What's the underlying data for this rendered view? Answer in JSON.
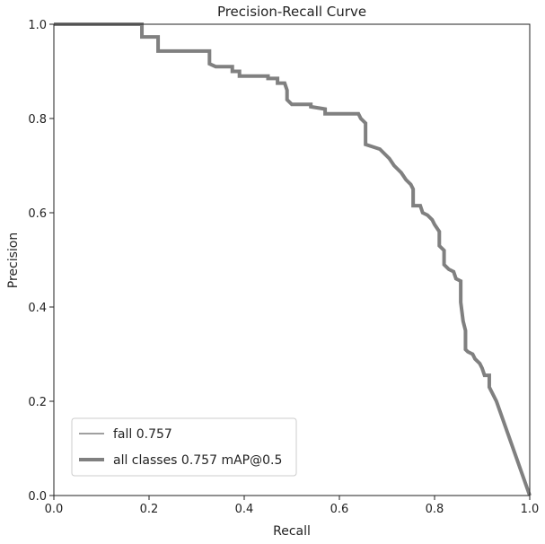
{
  "chart_data": {
    "type": "line",
    "title": "Precision-Recall Curve",
    "xlabel": "Recall",
    "ylabel": "Precision",
    "xlim": [
      0,
      1
    ],
    "ylim": [
      0,
      1
    ],
    "xticks": [
      "0.0",
      "0.2",
      "0.4",
      "0.6",
      "0.8",
      "1.0"
    ],
    "yticks": [
      "0.0",
      "0.2",
      "0.4",
      "0.6",
      "0.8",
      "1.0"
    ],
    "grid": false,
    "legend_position": "bottom-left",
    "series": [
      {
        "name": "fall 0.757",
        "color": "#808080",
        "linewidth": "thin",
        "points": [
          [
            0,
            1
          ],
          [
            0.185,
            1
          ],
          [
            0.185,
            0.973
          ],
          [
            0.219,
            0.973
          ],
          [
            0.219,
            0.943
          ],
          [
            0.327,
            0.943
          ],
          [
            0.327,
            0.916
          ],
          [
            0.34,
            0.91
          ],
          [
            0.375,
            0.91
          ],
          [
            0.375,
            0.9
          ],
          [
            0.39,
            0.9
          ],
          [
            0.39,
            0.89
          ],
          [
            0.45,
            0.89
          ],
          [
            0.45,
            0.885
          ],
          [
            0.47,
            0.885
          ],
          [
            0.47,
            0.875
          ],
          [
            0.485,
            0.875
          ],
          [
            0.49,
            0.86
          ],
          [
            0.49,
            0.84
          ],
          [
            0.5,
            0.83
          ],
          [
            0.54,
            0.83
          ],
          [
            0.54,
            0.825
          ],
          [
            0.57,
            0.82
          ],
          [
            0.57,
            0.81
          ],
          [
            0.64,
            0.81
          ],
          [
            0.645,
            0.8
          ],
          [
            0.655,
            0.79
          ],
          [
            0.655,
            0.745
          ],
          [
            0.67,
            0.74
          ],
          [
            0.685,
            0.735
          ],
          [
            0.695,
            0.725
          ],
          [
            0.705,
            0.715
          ],
          [
            0.715,
            0.7
          ],
          [
            0.72,
            0.695
          ],
          [
            0.73,
            0.685
          ],
          [
            0.74,
            0.67
          ],
          [
            0.75,
            0.66
          ],
          [
            0.755,
            0.65
          ],
          [
            0.755,
            0.615
          ],
          [
            0.77,
            0.615
          ],
          [
            0.775,
            0.6
          ],
          [
            0.785,
            0.595
          ],
          [
            0.795,
            0.585
          ],
          [
            0.8,
            0.575
          ],
          [
            0.81,
            0.56
          ],
          [
            0.81,
            0.53
          ],
          [
            0.82,
            0.52
          ],
          [
            0.82,
            0.49
          ],
          [
            0.83,
            0.48
          ],
          [
            0.84,
            0.475
          ],
          [
            0.845,
            0.46
          ],
          [
            0.855,
            0.455
          ],
          [
            0.855,
            0.41
          ],
          [
            0.86,
            0.37
          ],
          [
            0.865,
            0.35
          ],
          [
            0.865,
            0.31
          ],
          [
            0.87,
            0.305
          ],
          [
            0.88,
            0.3
          ],
          [
            0.885,
            0.29
          ],
          [
            0.895,
            0.28
          ],
          [
            0.9,
            0.27
          ],
          [
            0.905,
            0.255
          ],
          [
            0.915,
            0.255
          ],
          [
            0.915,
            0.23
          ],
          [
            0.92,
            0.22
          ],
          [
            0.925,
            0.21
          ],
          [
            0.93,
            0.2
          ],
          [
            1.0,
            0.0
          ]
        ]
      },
      {
        "name": "all classes 0.757 mAP@0.5",
        "color": "#808080",
        "linewidth": "thick",
        "same_as": "fall 0.757"
      }
    ]
  }
}
